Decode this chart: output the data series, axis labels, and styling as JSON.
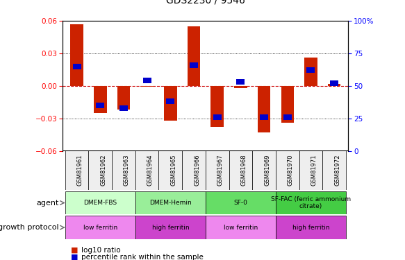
{
  "title": "GDS2230 / 9546",
  "samples": [
    "GSM81961",
    "GSM81962",
    "GSM81963",
    "GSM81964",
    "GSM81965",
    "GSM81966",
    "GSM81967",
    "GSM81968",
    "GSM81969",
    "GSM81970",
    "GSM81971",
    "GSM81972"
  ],
  "log10_ratio": [
    0.057,
    -0.025,
    -0.022,
    -0.001,
    -0.032,
    0.055,
    -0.038,
    -0.002,
    -0.043,
    -0.034,
    0.026,
    0.002
  ],
  "percentile_rank": [
    65,
    35,
    33,
    54,
    38,
    66,
    26,
    53,
    26,
    26,
    62,
    52
  ],
  "ylim": [
    -0.06,
    0.06
  ],
  "yticks_left": [
    -0.06,
    -0.03,
    0,
    0.03,
    0.06
  ],
  "yticks_right": [
    0,
    25,
    50,
    75,
    100
  ],
  "bar_color": "#cc2200",
  "pct_color": "#0000cc",
  "zero_line_color": "#cc0000",
  "agent_groups": [
    {
      "label": "DMEM-FBS",
      "start": 0,
      "end": 3,
      "color": "#ccffcc"
    },
    {
      "label": "DMEM-Hemin",
      "start": 3,
      "end": 6,
      "color": "#99ee99"
    },
    {
      "label": "SF-0",
      "start": 6,
      "end": 9,
      "color": "#66dd66"
    },
    {
      "label": "SF-FAC (ferric ammonium\ncitrate)",
      "start": 9,
      "end": 12,
      "color": "#44cc44"
    }
  ],
  "protocol_groups": [
    {
      "label": "low ferritin",
      "start": 0,
      "end": 3,
      "color": "#ee88ee"
    },
    {
      "label": "high ferritin",
      "start": 3,
      "end": 6,
      "color": "#cc44cc"
    },
    {
      "label": "low ferritin",
      "start": 6,
      "end": 9,
      "color": "#ee88ee"
    },
    {
      "label": "high ferritin",
      "start": 9,
      "end": 12,
      "color": "#cc44cc"
    }
  ],
  "legend_red": "log10 ratio",
  "legend_blue": "percentile rank within the sample",
  "bar_width": 0.55
}
